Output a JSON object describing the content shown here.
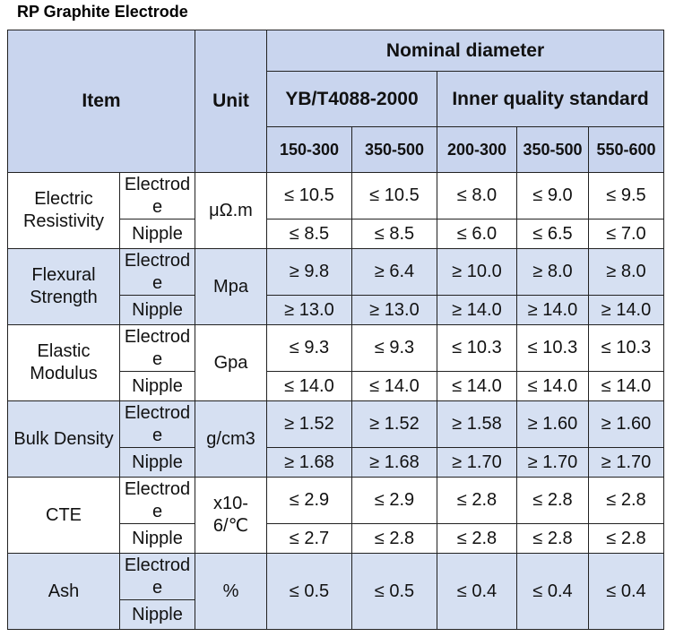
{
  "title": "RP Graphite Electrode",
  "table": {
    "header": {
      "item": "Item",
      "unit": "Unit",
      "nominal": "Nominal diameter",
      "standards": [
        {
          "name": "YB/T4088-2000",
          "ranges": [
            "150-300",
            "350-500"
          ]
        },
        {
          "name": "Inner quality standard",
          "ranges": [
            "200-300",
            "350-500",
            "550-600"
          ]
        }
      ]
    },
    "rows": [
      {
        "item": "Electric Resistivity",
        "unit": "μΩ.m",
        "parts": [
          {
            "label": "Electrode",
            "values": [
              "≤ 10.5",
              "≤ 10.5",
              "≤ 8.0",
              "≤ 9.0",
              "≤ 9.5"
            ]
          },
          {
            "label": "Nipple",
            "values": [
              "≤ 8.5",
              "≤ 8.5",
              "≤ 6.0",
              "≤ 6.5",
              "≤ 7.0"
            ]
          }
        ]
      },
      {
        "item": "Flexural Strength",
        "unit": "Mpa",
        "parts": [
          {
            "label": "Electrode",
            "values": [
              "≥ 9.8",
              "≥ 6.4",
              "≥ 10.0",
              "≥ 8.0",
              "≥ 8.0"
            ]
          },
          {
            "label": "Nipple",
            "values": [
              "≥ 13.0",
              "≥ 13.0",
              "≥ 14.0",
              "≥ 14.0",
              "≥ 14.0"
            ]
          }
        ]
      },
      {
        "item": "Elastic Modulus",
        "unit": "Gpa",
        "parts": [
          {
            "label": "Electrode",
            "values": [
              "≤ 9.3",
              "≤ 9.3",
              "≤ 10.3",
              "≤ 10.3",
              "≤ 10.3"
            ]
          },
          {
            "label": "Nipple",
            "values": [
              "≤ 14.0",
              "≤ 14.0",
              "≤ 14.0",
              "≤ 14.0",
              "≤ 14.0"
            ]
          }
        ]
      },
      {
        "item": "Bulk Density",
        "unit": "g/cm3",
        "parts": [
          {
            "label": "Electrode",
            "values": [
              "≥ 1.52",
              "≥ 1.52",
              "≥ 1.58",
              "≥ 1.60",
              "≥ 1.60"
            ]
          },
          {
            "label": "Nipple",
            "values": [
              "≥ 1.68",
              "≥ 1.68",
              "≥ 1.70",
              "≥ 1.70",
              "≥ 1.70"
            ]
          }
        ]
      },
      {
        "item": "CTE",
        "unit": "x10-6/℃",
        "parts": [
          {
            "label": "Electrode",
            "values": [
              "≤ 2.9",
              "≤ 2.9",
              "≤ 2.8",
              "≤ 2.8",
              "≤ 2.8"
            ]
          },
          {
            "label": "Nipple",
            "values": [
              "≤ 2.7",
              "≤ 2.8",
              "≤ 2.8",
              "≤ 2.8",
              "≤ 2.8"
            ]
          }
        ]
      },
      {
        "item": "Ash",
        "unit": "%",
        "parts": [
          {
            "label": "Electrode",
            "values": [
              "≤ 0.5",
              "≤ 0.5",
              "≤ 0.4",
              "≤ 0.4",
              "≤ 0.4"
            ]
          },
          {
            "label": "Nipple"
          }
        ]
      }
    ]
  }
}
